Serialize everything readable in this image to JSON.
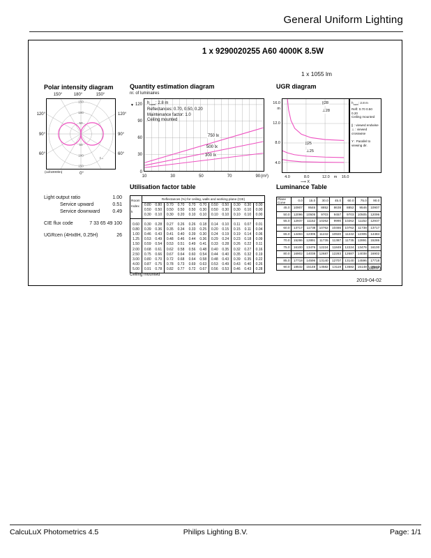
{
  "page": {
    "header_title": "General Uniform Lighting",
    "date": "2019-04-02",
    "footer_left": "CalcuLuX Photometrics 4.5",
    "footer_center": "Philips Lighting B.V.",
    "footer_right": "Page: 1/1"
  },
  "product": {
    "title": "1 x 9290020255 A60 4000K 8.5W",
    "lumens": "1 x 1055 lm"
  },
  "colors": {
    "curve": "#ee4fc0",
    "grid": "#9a9a9a",
    "text": "#111111"
  },
  "icons": {
    "qty_y_axis_arrow": "▼",
    "c_plane_indicator": "ℓ→"
  },
  "polar": {
    "title": "Polar intensity diagram",
    "unit": "(cd/1000lm)",
    "angle_top_left": "150°",
    "angle_top_center": "180°",
    "angle_top_right": "150°",
    "angle_left_upper": "120°",
    "angle_left_mid": "90°",
    "angle_left_lower": "60°",
    "angle_right_upper": "120°",
    "angle_right_mid": "90°",
    "angle_right_lower": "60°",
    "angle_bottom": "0°"
  },
  "quantity": {
    "title": "Quantity estimation diagram",
    "y_axis_label": "nr. of luminaires",
    "x_unit": "(m²)",
    "annotation": {
      "h_symbol": "h",
      "h_sub": "room",
      "h_value": ": 2.8 m",
      "reflectances": "Reflectances:  0.70, 0.50, 0.20",
      "maintenance": "Maintenance factor:  1.0",
      "mounting": "Ceiling mounted"
    },
    "line_labels": {
      "l750": "750 lx",
      "l500": "500 lx",
      "l300": "300 lx"
    }
  },
  "ugr": {
    "title": "UGR diagram",
    "axis_unit": "m",
    "x_axis_pointer": "⟶ X",
    "curve_labels": {
      "endwise28": "||28",
      "crosswise28": "⊥28",
      "endwise25": "||25",
      "crosswise25": "⊥25"
    },
    "legend": {
      "h_symbol": "h",
      "h_sub": "room",
      "h_value": ": 2.8 m",
      "refl": "Refl: 0.70 0.50 0.20",
      "mounting": "Ceiling mounted",
      "endwise": "|| : viewed endwise",
      "crosswise": "⊥ : viewed crosswise",
      "y_note": "Y : Parallel to viewing dir."
    }
  },
  "photometrics": {
    "rows": [
      {
        "label": "Light output ratio",
        "value": "1.00",
        "indent": false,
        "gap": false
      },
      {
        "label": "Service upward",
        "value": "0.51",
        "indent": true,
        "gap": false
      },
      {
        "label": "Service downward",
        "value": "0.49",
        "indent": true,
        "gap": false
      },
      {
        "label": "CIE flux code",
        "value": "7 33 65 49 100",
        "indent": false,
        "gap": true
      },
      {
        "label": "UGRcen (4Hx8H, 0.25H)",
        "value": "26",
        "indent": false,
        "gap": true
      }
    ]
  },
  "utilisation": {
    "title": "Utilisation factor table",
    "header": "Reflectances (%) for ceiling, walls and working plane (CIE)",
    "row_label_lines": [
      "Room",
      "Index",
      "k"
    ],
    "reflectance_rows": [
      [
        "0.80",
        "0.80",
        "0.70",
        "0.70",
        "0.70",
        "0.70",
        "0.50",
        "0.50",
        "0.30",
        "0.30",
        "0.00"
      ],
      [
        "0.50",
        "0.50",
        "0.50",
        "0.50",
        "0.50",
        "0.30",
        "0.50",
        "0.30",
        "0.30",
        "0.10",
        "0.00"
      ],
      [
        "0.30",
        "0.10",
        "0.30",
        "0.20",
        "0.10",
        "0.10",
        "0.10",
        "0.10",
        "0.10",
        "0.10",
        "0.00"
      ]
    ],
    "rows": [
      {
        "k": "0.60",
        "values": [
          "0.30",
          "0.28",
          "0.27",
          "0.26",
          "0.26",
          "0.18",
          "0.14",
          "0.10",
          "0.11",
          "0.07",
          "0.01"
        ]
      },
      {
        "k": "0.80",
        "values": [
          "0.39",
          "0.36",
          "0.35",
          "0.34",
          "0.33",
          "0.25",
          "0.20",
          "0.15",
          "0.15",
          "0.11",
          "0.04"
        ]
      },
      {
        "k": "1.00",
        "values": [
          "0.46",
          "0.43",
          "0.41",
          "0.40",
          "0.39",
          "0.30",
          "0.24",
          "0.19",
          "0.19",
          "0.14",
          "0.06"
        ]
      },
      {
        "k": "1.25",
        "values": [
          "0.53",
          "0.49",
          "0.48",
          "0.46",
          "0.44",
          "0.36",
          "0.29",
          "0.24",
          "0.23",
          "0.18",
          "0.09"
        ]
      },
      {
        "k": "1.50",
        "values": [
          "0.59",
          "0.54",
          "0.53",
          "0.51",
          "0.49",
          "0.41",
          "0.33",
          "0.28",
          "0.26",
          "0.22",
          "0.11"
        ]
      },
      {
        "k": "2.00",
        "values": [
          "0.68",
          "0.61",
          "0.62",
          "0.58",
          "0.56",
          "0.48",
          "0.40",
          "0.35",
          "0.32",
          "0.27",
          "0.16"
        ]
      },
      {
        "k": "2.50",
        "values": [
          "0.75",
          "0.66",
          "0.67",
          "0.64",
          "0.60",
          "0.54",
          "0.44",
          "0.40",
          "0.35",
          "0.32",
          "0.19"
        ]
      },
      {
        "k": "3.00",
        "values": [
          "0.80",
          "0.70",
          "0.72",
          "0.68",
          "0.64",
          "0.58",
          "0.48",
          "0.43",
          "0.39",
          "0.35",
          "0.22"
        ]
      },
      {
        "k": "4.00",
        "values": [
          "0.87",
          "0.75",
          "0.78",
          "0.73",
          "0.69",
          "0.63",
          "0.53",
          "0.49",
          "0.43",
          "0.40",
          "0.26"
        ]
      },
      {
        "k": "5.00",
        "values": [
          "0.91",
          "0.78",
          "0.82",
          "0.77",
          "0.72",
          "0.67",
          "0.56",
          "0.53",
          "0.46",
          "0.43",
          "0.28"
        ]
      }
    ],
    "footnote": "Ceiling mounted"
  },
  "luminance": {
    "title": "Luminance Table",
    "corner_lines": [
      "Plane",
      "Cone"
    ],
    "columns": [
      "0.0",
      "15.0",
      "30.0",
      "45.0",
      "60.0",
      "75.0",
      "90.0"
    ],
    "rows": [
      {
        "angle": "45.0",
        "values": [
          "10907",
          "9546",
          "8852",
          "8638",
          "8852",
          "9546",
          "10907"
        ]
      },
      {
        "angle": "50.0",
        "values": [
          "12096",
          "10505",
          "9703",
          "9457",
          "9703",
          "10505",
          "12096"
        ]
      },
      {
        "angle": "55.0",
        "values": [
          "12937",
          "11152",
          "10262",
          "9990",
          "10262",
          "11152",
          "12937"
        ]
      },
      {
        "angle": "60.0",
        "values": [
          "13717",
          "11738",
          "10762",
          "10466",
          "10762",
          "11738",
          "13717"
        ]
      },
      {
        "angle": "65.0",
        "values": [
          "14484",
          "12305",
          "11242",
          "10920",
          "11242",
          "12305",
          "14484"
        ]
      },
      {
        "angle": "70.0",
        "values": [
          "15286",
          "12891",
          "11735",
          "11387",
          "11735",
          "12891",
          "15286"
        ]
      },
      {
        "angle": "75.0",
        "values": [
          "16100",
          "13476",
          "12224",
          "11849",
          "12224",
          "13476",
          "16100"
        ]
      },
      {
        "angle": "80.0",
        "values": [
          "16902",
          "14038",
          "12687",
          "12283",
          "12687",
          "14038",
          "16902"
        ]
      },
      {
        "angle": "85.0",
        "values": [
          "17718",
          "14596",
          "13140",
          "12707",
          "13140",
          "14596",
          "17718"
        ]
      },
      {
        "angle": "90.0",
        "values": [
          "18532",
          "15148",
          "13582",
          "13119",
          "13582",
          "15148",
          "18532"
        ]
      }
    ],
    "unit": "(cd/m²)"
  },
  "chart_data": [
    {
      "id": "polar_intensity_diagram",
      "type": "line",
      "title": "Polar intensity diagram",
      "units": "cd/1000lm",
      "ring_ticks": [
        50,
        100,
        150
      ],
      "angle_ticks_deg": [
        0,
        30,
        60,
        90,
        120,
        150,
        180
      ],
      "peak_intensity": 105,
      "pattern": "two symmetric horizontal lobes (figure-eight): ~105 cd/1000lm at 90 deg each side, near 0 at 0 and 180 deg"
    },
    {
      "id": "quantity_estimation_diagram",
      "type": "line",
      "title": "Quantity estimation diagram",
      "xlabel": "(m2)",
      "ylabel": "nr. of luminaires",
      "xlim": [
        10,
        95
      ],
      "ylim": [
        0,
        130
      ],
      "x_ticks": [
        10,
        30,
        50,
        70,
        90
      ],
      "y_ticks": [
        0,
        30,
        60,
        90,
        120
      ],
      "grid_x_step": 5,
      "grid_y_step": 30,
      "series": [
        {
          "name": "750 lx",
          "x": [
            10,
            95
          ],
          "y": [
            15,
            78
          ]
        },
        {
          "name": "500 lx",
          "x": [
            10,
            95
          ],
          "y": [
            10,
            53
          ]
        },
        {
          "name": "300 lx",
          "x": [
            10,
            95
          ],
          "y": [
            6,
            32
          ]
        }
      ]
    },
    {
      "id": "ugr_diagram",
      "type": "line",
      "title": "UGR diagram",
      "xlabel": "X (m)",
      "ylabel": "Y (m)",
      "xlim": [
        3,
        17
      ],
      "ylim": [
        2,
        17
      ],
      "x_ticks": [
        4,
        8,
        12,
        16
      ],
      "y_ticks": [
        4,
        8,
        12,
        16
      ],
      "contours": [
        {
          "name": "UGR 28 (endwise/crosswise)",
          "points": [
            [
              4.05,
              17
            ],
            [
              4.3,
              14.8
            ],
            [
              4.8,
              12.6
            ],
            [
              5.6,
              11.0
            ],
            [
              7,
              9.8
            ],
            [
              9,
              9.1
            ],
            [
              12,
              8.7
            ],
            [
              16,
              8.5
            ]
          ]
        },
        {
          "name": "UGR 25 endwise",
          "points": [
            [
              3,
              6.4
            ],
            [
              4,
              6.0
            ],
            [
              5.5,
              5.6
            ],
            [
              8,
              5.3
            ],
            [
              12,
              5.1
            ],
            [
              16,
              5.0
            ]
          ]
        },
        {
          "name": "UGR 25 crosswise",
          "points": [
            [
              3,
              4.6
            ],
            [
              4.5,
              4.35
            ],
            [
              7,
              4.15
            ],
            [
              11,
              4.05
            ],
            [
              16,
              4.0
            ]
          ]
        }
      ]
    }
  ]
}
